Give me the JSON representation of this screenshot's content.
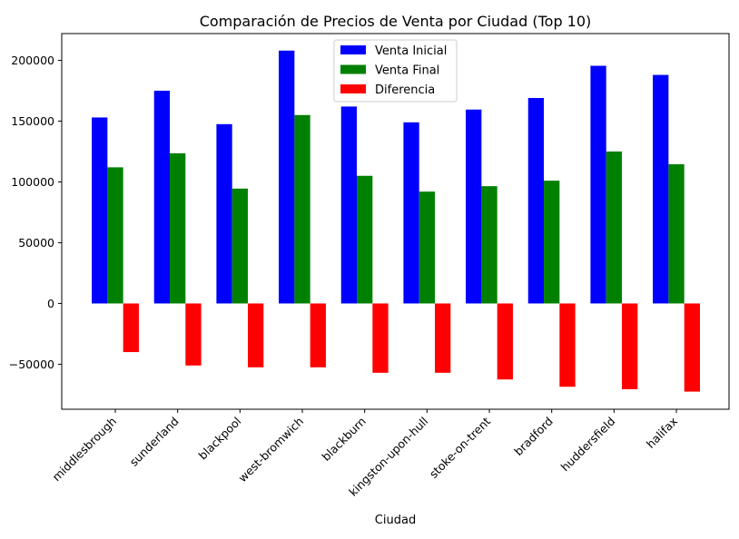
{
  "chart_data": {
    "type": "bar",
    "title": "Comparación de Precios de Venta por Ciudad (Top 10)",
    "xlabel": "Ciudad",
    "ylabel": "",
    "ylim": [
      -87000,
      222000
    ],
    "yticks": [
      -50000,
      0,
      50000,
      100000,
      150000,
      200000
    ],
    "ytick_labels": [
      "−50000",
      "0",
      "50000",
      "100000",
      "150000",
      "200000"
    ],
    "grid": false,
    "legend_position": "top-center",
    "categories": [
      "middlesbrough",
      "sunderland",
      "blackpool",
      "west-bromwich",
      "blackburn",
      "kingston-upon-hull",
      "stoke-on-trent",
      "bradford",
      "huddersfield",
      "halifax"
    ],
    "series": [
      {
        "name": "Venta Inicial",
        "color": "#0000ff",
        "values": [
          153000,
          175000,
          147500,
          208000,
          162000,
          149000,
          159500,
          169000,
          195500,
          188000
        ]
      },
      {
        "name": "Venta Final",
        "color": "#008000",
        "values": [
          112000,
          123500,
          94500,
          155000,
          105000,
          92000,
          96500,
          101000,
          125000,
          114500
        ]
      },
      {
        "name": "Diferencia",
        "color": "#ff0000",
        "values": [
          -40000,
          -51000,
          -52500,
          -52500,
          -57000,
          -57000,
          -62500,
          -68500,
          -70500,
          -72500
        ]
      }
    ]
  }
}
